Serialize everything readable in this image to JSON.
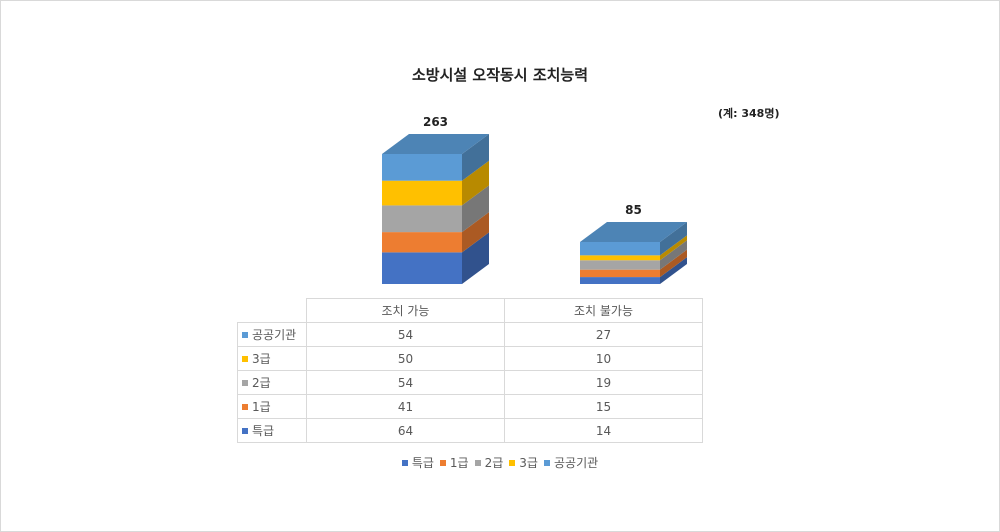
{
  "chart_data": {
    "type": "bar",
    "stacked": true,
    "title": "소방시설 오작동시 조치능력",
    "note": "(계: 348명)",
    "categories": [
      "조치 가능",
      "조치 불가능"
    ],
    "totals": [
      263,
      85
    ],
    "series": [
      {
        "name": "특급",
        "values": [
          64,
          14
        ],
        "color": "#4472c4"
      },
      {
        "name": "1급",
        "values": [
          41,
          15
        ],
        "color": "#ed7d31"
      },
      {
        "name": "2급",
        "values": [
          54,
          19
        ],
        "color": "#a5a5a5"
      },
      {
        "name": "3급",
        "values": [
          50,
          10
        ],
        "color": "#ffc000"
      },
      {
        "name": "공공기관",
        "values": [
          54,
          27
        ],
        "color": "#5b9bd5"
      }
    ],
    "legend_position": "bottom",
    "data_table": true
  }
}
